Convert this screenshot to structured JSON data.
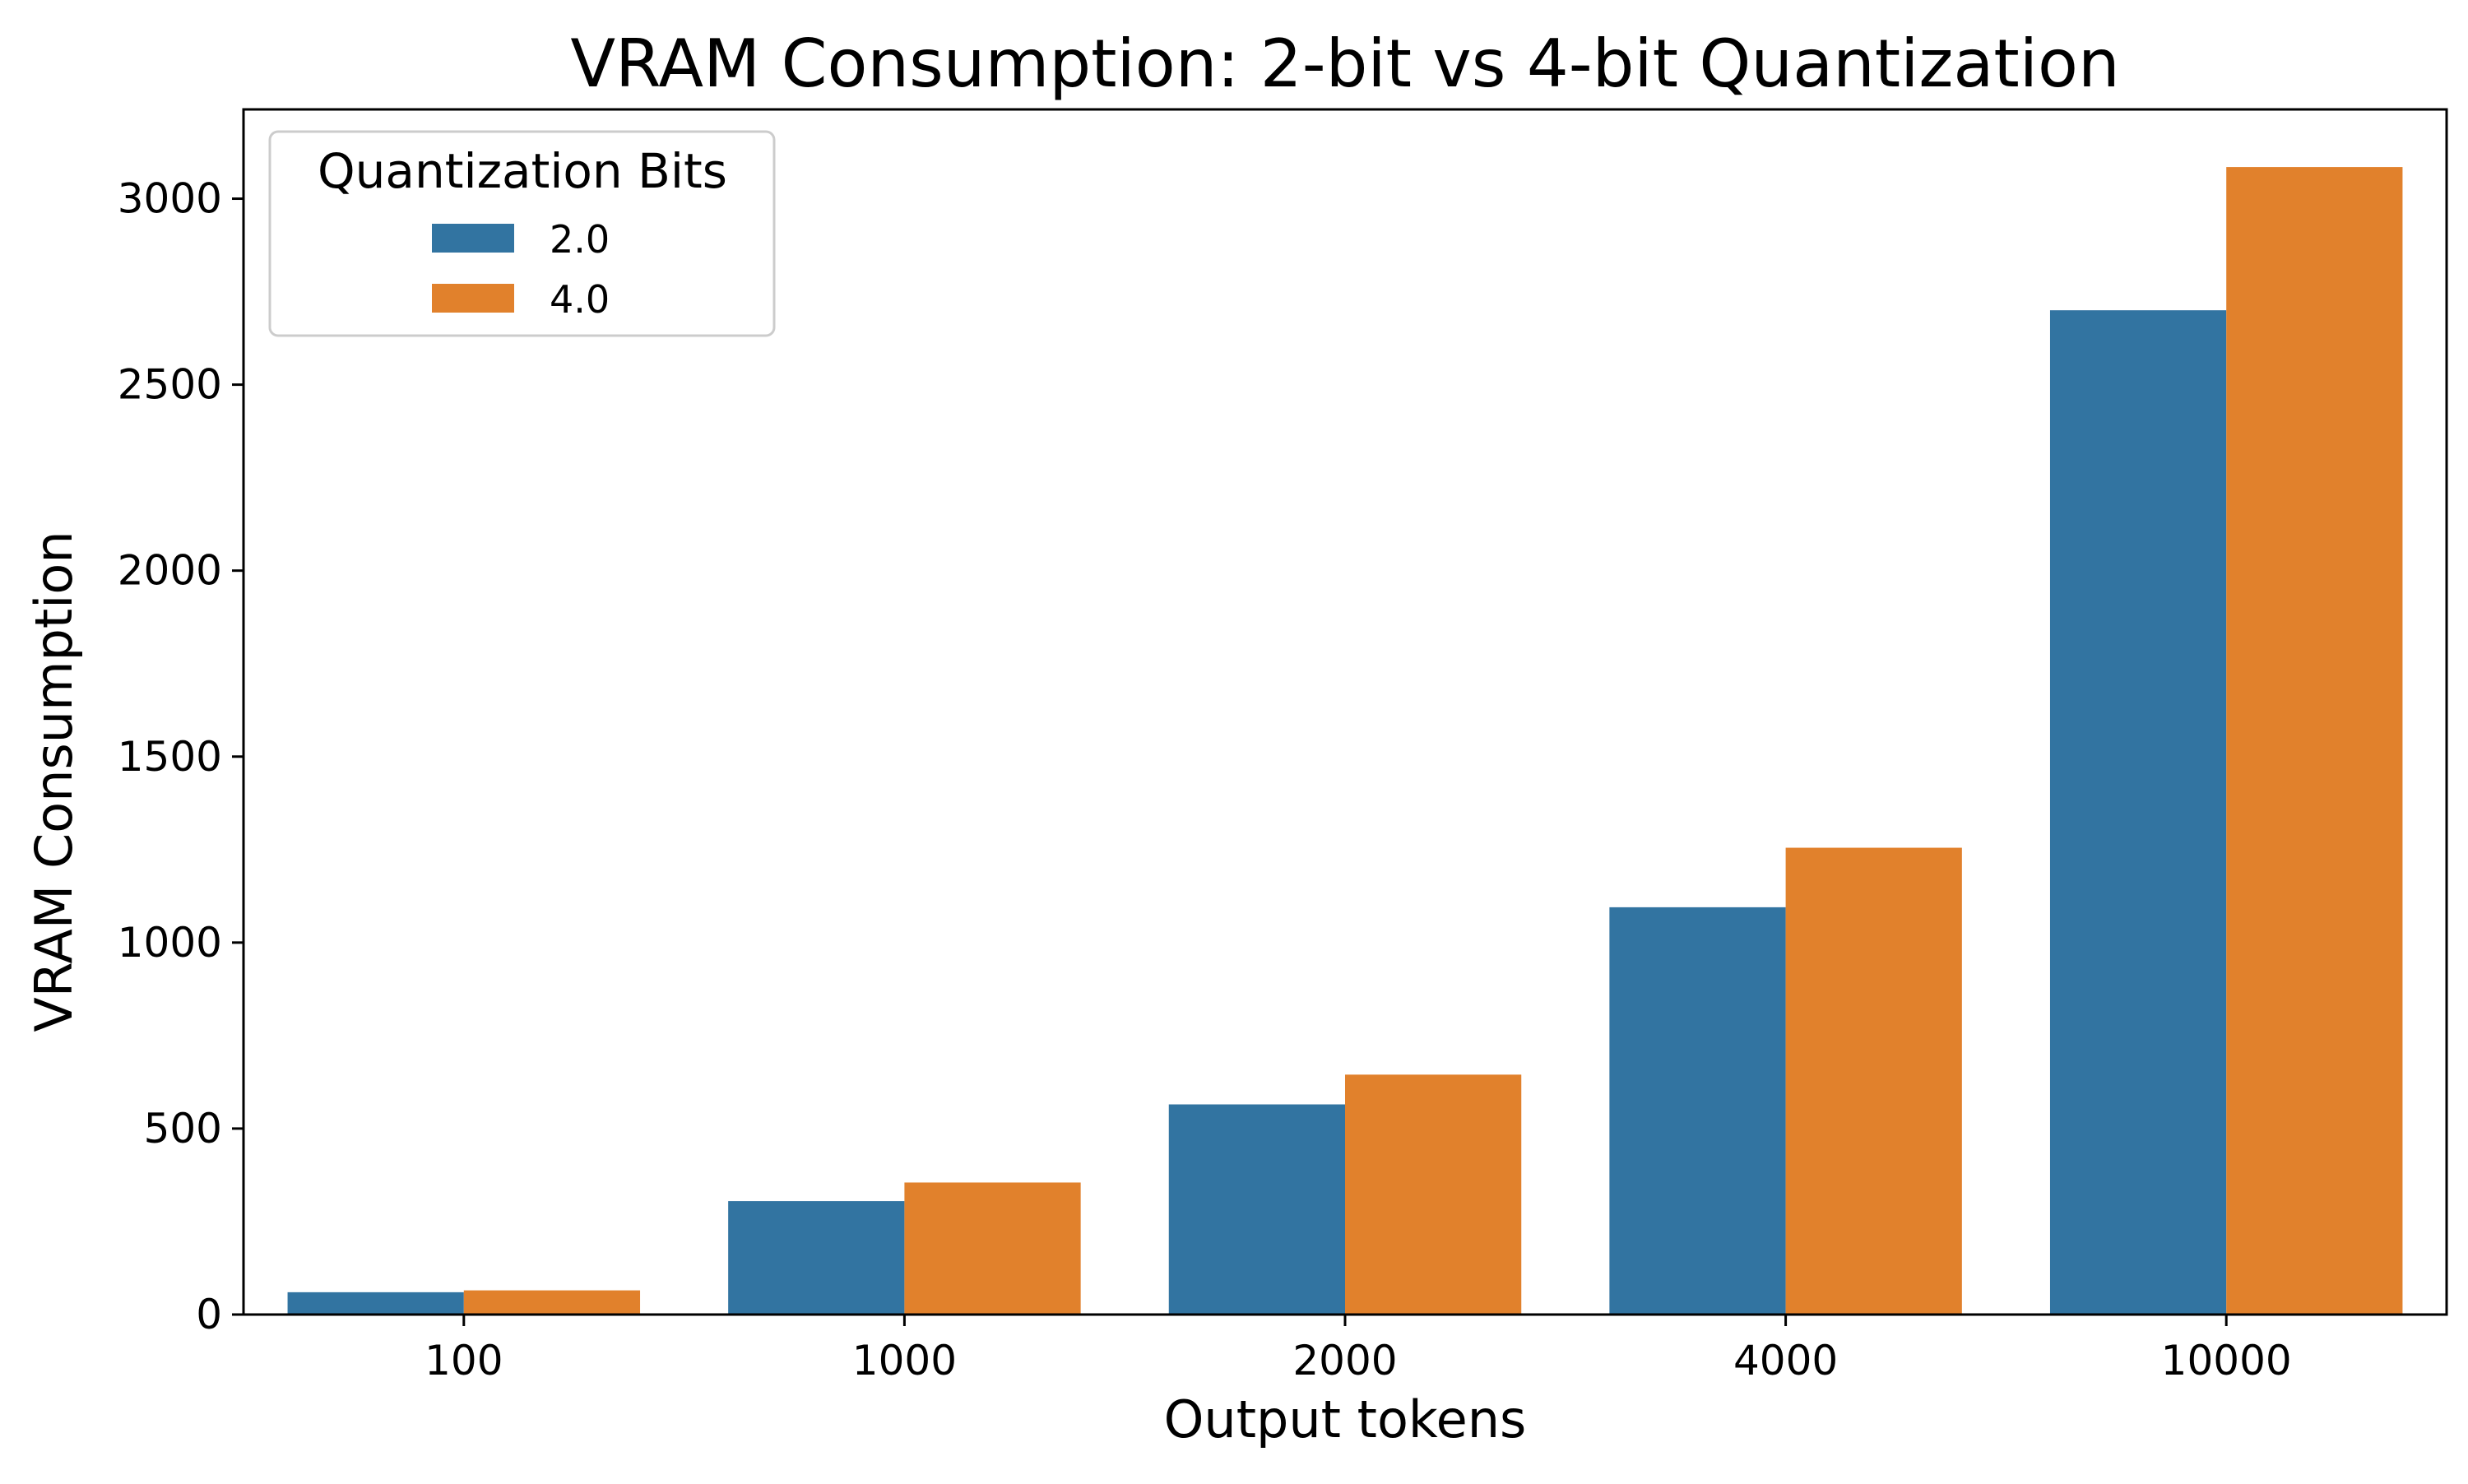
{
  "chart_data": {
    "type": "bar",
    "title": "VRAM Consumption: 2-bit vs 4-bit Quantization",
    "xlabel": "Output tokens",
    "ylabel": "VRAM Consumption",
    "categories": [
      "100",
      "1000",
      "2000",
      "4000",
      "10000"
    ],
    "series": [
      {
        "name": "2.0",
        "color": "#3274a1",
        "values": [
          60,
          305,
          565,
          1095,
          2700
        ]
      },
      {
        "name": "4.0",
        "color": "#e1812c",
        "values": [
          65,
          355,
          645,
          1255,
          3085
        ]
      }
    ],
    "ylim": [
      0,
      3240
    ],
    "yticks": [
      0,
      500,
      1000,
      1500,
      2000,
      2500,
      3000
    ],
    "ytick_labels": [
      "0",
      "500",
      "1000",
      "1500",
      "2000",
      "2500",
      "3000"
    ],
    "grid": false,
    "legend": {
      "title": "Quantization Bits",
      "placement": "top-left"
    }
  }
}
